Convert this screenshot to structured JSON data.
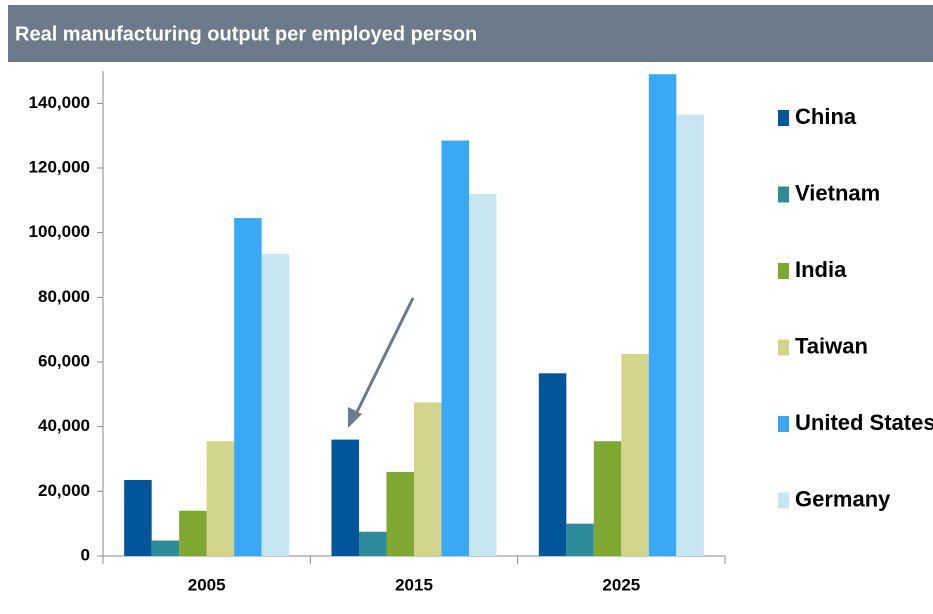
{
  "chart_data": {
    "type": "bar",
    "title": "Real manufacturing output per employed person",
    "categories": [
      "2005",
      "2015",
      "2025"
    ],
    "series": [
      {
        "name": "China",
        "color": "#00559b",
        "values": [
          23500,
          36000,
          56500
        ]
      },
      {
        "name": "Vietnam",
        "color": "#2e8b9a",
        "values": [
          4800,
          7500,
          10000
        ]
      },
      {
        "name": "India",
        "color": "#7fa832",
        "values": [
          14000,
          26000,
          35500
        ]
      },
      {
        "name": "Taiwan",
        "color": "#d3d48b",
        "values": [
          35500,
          47500,
          62500
        ]
      },
      {
        "name": "United States",
        "color": "#3aa8f5",
        "values": [
          104500,
          128500,
          149000
        ]
      },
      {
        "name": "Germany",
        "color": "#c8e6f0",
        "values": [
          93500,
          112000,
          136500
        ]
      }
    ],
    "ylim": [
      0,
      150000
    ],
    "yticks": [
      0,
      {
        "value": 20000,
        "label": "20,000"
      },
      {
        "value": 40000,
        "label": "40,000"
      },
      {
        "value": 60000,
        "label": "60,000"
      },
      {
        "value": 80000,
        "label": "80,000"
      },
      {
        "value": 100000,
        "label": "100,000"
      },
      {
        "value": 120000,
        "label": "120,000"
      },
      {
        "value": 140000,
        "label": "140,000"
      }
    ],
    "grid": false,
    "legend": "right"
  }
}
